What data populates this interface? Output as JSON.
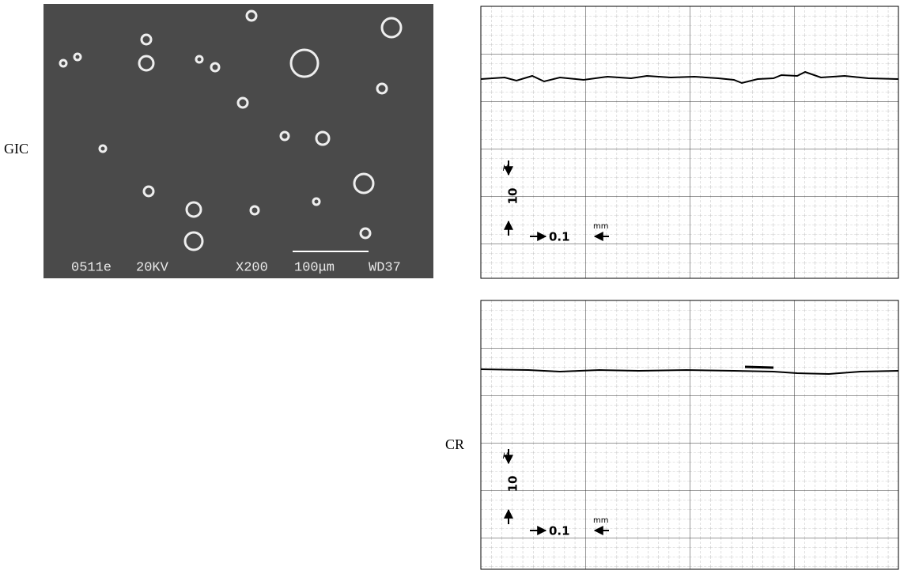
{
  "labels": {
    "gic": "GIC",
    "cr": "CR"
  },
  "sem": {
    "caption": [
      "0511e",
      "20KV",
      "X200",
      "100μm",
      "WD37"
    ]
  },
  "profiles": [
    {
      "vertical_unit": "μ",
      "vertical_scale": "10",
      "horizontal_scale": "0.1",
      "horizontal_unit": "mm"
    },
    {
      "vertical_unit": "μ",
      "vertical_scale": "10",
      "horizontal_scale": "0.1",
      "horizontal_unit": "mm"
    }
  ]
}
